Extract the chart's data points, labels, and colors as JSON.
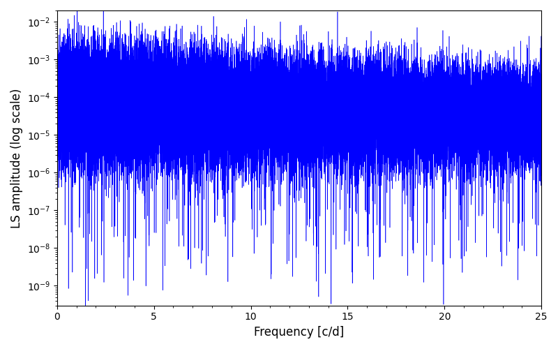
{
  "title": "",
  "xlabel": "Frequency [c/d]",
  "ylabel": "LS amplitude (log scale)",
  "xlim": [
    0,
    25
  ],
  "ylim_log": [
    3e-10,
    0.02
  ],
  "line_color": "#0000ff",
  "line_width": 0.4,
  "background_color": "#ffffff",
  "figsize": [
    8.0,
    5.0
  ],
  "dpi": 100,
  "seed": 42,
  "n_points": 5000,
  "freq_max": 25.0
}
